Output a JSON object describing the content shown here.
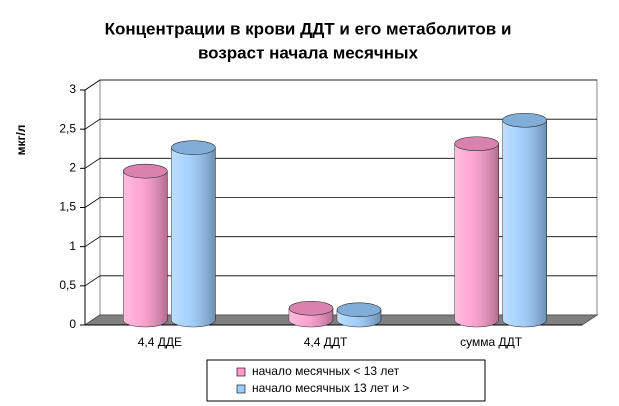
{
  "chart_data": {
    "type": "bar",
    "title": [
      "Концентрации в крови ДДТ и его метаболитов и",
      "возраст начала месячных"
    ],
    "y_label": "мкг/л",
    "categories": [
      "4,4 ДДЕ",
      "4,4 ДДТ",
      "сумма ДДТ"
    ],
    "series": [
      {
        "name": "начало месячных < 13 лет",
        "color": "#ff99cc",
        "values": [
          1.9,
          0.15,
          2.25
        ]
      },
      {
        "name": "начало месячных 13 лет и >",
        "color": "#99ccff",
        "values": [
          2.2,
          0.13,
          2.55
        ]
      }
    ],
    "ylim": [
      0,
      3
    ],
    "yticks": [
      0,
      {
        "value": 0.5,
        "label": "0,5"
      },
      1,
      {
        "value": 1.5,
        "label": "1,5"
      },
      2,
      {
        "value": 2.5,
        "label": "2,5"
      },
      3
    ],
    "grid": true,
    "legend": "bottom"
  }
}
